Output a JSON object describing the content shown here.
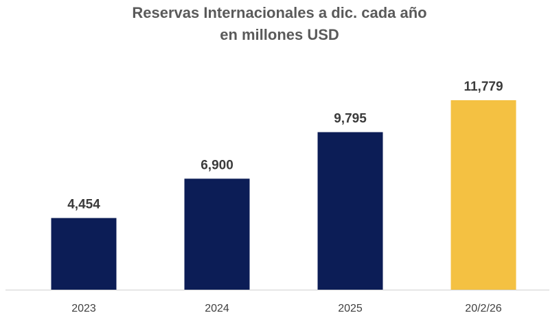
{
  "chart_data": {
    "type": "bar",
    "title_line1": "Reservas Internacionales a dic. cada año",
    "title_line2": "en millones USD",
    "categories": [
      "2023",
      "2024",
      "2025",
      "20/2/26"
    ],
    "values": [
      4454,
      6900,
      9795,
      11779
    ],
    "value_labels": [
      "4,454",
      "6,900",
      "9,795",
      "11,779"
    ],
    "bar_colors": [
      "#0c1d56",
      "#0c1d56",
      "#0c1d56",
      "#f4c142"
    ],
    "axis_color": "#d0d0d0",
    "ylim": [
      0,
      13000
    ],
    "xlabel": "",
    "ylabel": "",
    "grid": false,
    "legend": "none"
  }
}
